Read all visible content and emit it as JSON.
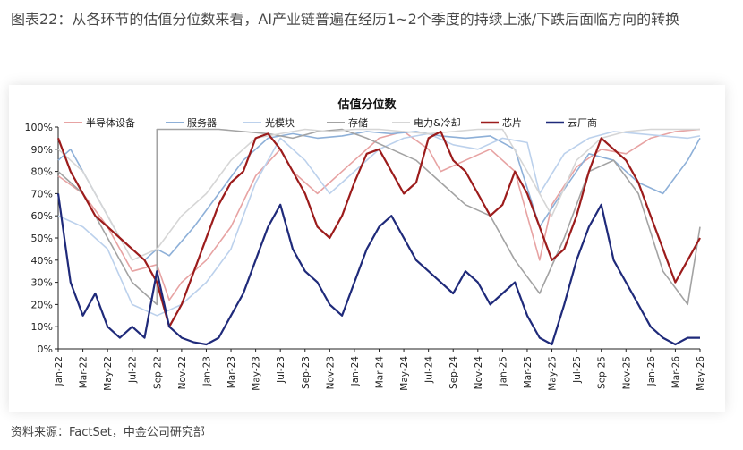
{
  "page": {
    "title": "图表22：从各环节的估值分位数来看，AI产业链普遍在经历1~2个季度的持续上涨/下跌后面临方向的转换",
    "source": "资料来源：FactSet，中金公司研究部"
  },
  "chart_data": {
    "type": "line",
    "title": "估值分位数",
    "xlabel": "",
    "ylabel": "",
    "ylim": [
      0,
      100
    ],
    "y_ticks": [
      "0%",
      "10%",
      "20%",
      "30%",
      "40%",
      "50%",
      "60%",
      "70%",
      "80%",
      "90%",
      "100%"
    ],
    "x_ticks": [
      "Jan-22",
      "Mar-22",
      "May-22",
      "Jul-22",
      "Sep-22",
      "Nov-22",
      "Jan-23",
      "Mar-23",
      "May-23",
      "Jul-23",
      "Sep-23",
      "Nov-23",
      "Jan-24",
      "Mar-24",
      "May-24",
      "Jul-24",
      "Sep-24",
      "Nov-24",
      "Jan-25",
      "Mar-25",
      "May-25",
      "Jul-25",
      "Sep-25",
      "Nov-25",
      "Jan-26",
      "Mar-26",
      "May-26"
    ],
    "x_range": [
      "2022-01",
      "2026-05"
    ],
    "legend_position": "top",
    "grid": false,
    "series": [
      {
        "name": "半导体设备",
        "color": "#e7a3a3",
        "x": [
          "2022-01",
          "2022-03",
          "2022-05",
          "2022-07",
          "2022-09",
          "2022-10",
          "2022-11",
          "2023-01",
          "2023-03",
          "2023-05",
          "2023-07",
          "2023-08",
          "2023-10",
          "2023-11",
          "2024-01",
          "2024-03",
          "2024-05",
          "2024-07",
          "2024-08",
          "2024-10",
          "2024-12",
          "2025-02",
          "2025-04",
          "2025-05",
          "2025-07",
          "2025-09",
          "2025-11",
          "2026-01",
          "2026-03",
          "2026-05"
        ],
        "values": [
          78,
          70,
          55,
          35,
          38,
          22,
          30,
          40,
          55,
          78,
          90,
          80,
          70,
          75,
          85,
          95,
          98,
          90,
          80,
          85,
          90,
          80,
          40,
          65,
          82,
          90,
          88,
          95,
          98,
          99
        ]
      },
      {
        "name": "服务器",
        "color": "#8eb0d8",
        "x": [
          "2022-01",
          "2022-02",
          "2022-04",
          "2022-06",
          "2022-08",
          "2022-09",
          "2022-10",
          "2022-12",
          "2023-02",
          "2023-04",
          "2023-06",
          "2023-08",
          "2023-10",
          "2023-12",
          "2024-02",
          "2024-04",
          "2024-06",
          "2024-08",
          "2024-10",
          "2024-12",
          "2025-02",
          "2025-04",
          "2025-06",
          "2025-08",
          "2025-10",
          "2025-12",
          "2026-02",
          "2026-04",
          "2026-05"
        ],
        "values": [
          85,
          90,
          70,
          50,
          40,
          45,
          42,
          55,
          70,
          85,
          95,
          97,
          95,
          96,
          98,
          97,
          98,
          96,
          95,
          96,
          90,
          55,
          72,
          88,
          85,
          75,
          70,
          85,
          95
        ]
      },
      {
        "name": "光模块",
        "color": "#bcd1ec",
        "x": [
          "2022-01",
          "2022-03",
          "2022-05",
          "2022-07",
          "2022-09",
          "2022-11",
          "2023-01",
          "2023-03",
          "2023-05",
          "2023-07",
          "2023-09",
          "2023-11",
          "2024-01",
          "2024-03",
          "2024-05",
          "2024-07",
          "2024-09",
          "2024-11",
          "2025-01",
          "2025-03",
          "2025-04",
          "2025-06",
          "2025-08",
          "2025-10",
          "2025-12",
          "2026-02",
          "2026-04",
          "2026-05"
        ],
        "values": [
          60,
          55,
          45,
          20,
          15,
          20,
          30,
          45,
          75,
          95,
          85,
          70,
          80,
          90,
          95,
          97,
          92,
          90,
          95,
          93,
          70,
          88,
          95,
          98,
          97,
          96,
          95,
          96
        ]
      },
      {
        "name": "存储",
        "color": "#a3a3a3",
        "x": [
          "2022-01",
          "2022-03",
          "2022-05",
          "2022-07",
          "2022-09",
          "2022-09",
          "2022-12",
          "2023-02",
          "2023-04",
          "2023-06",
          "2023-08",
          "2023-10",
          "2023-12",
          "2024-02",
          "2024-04",
          "2024-06",
          "2024-08",
          "2024-10",
          "2024-12",
          "2025-02",
          "2025-04",
          "2025-06",
          "2025-08",
          "2025-10",
          "2025-12",
          "2026-02",
          "2026-04",
          "2026-05"
        ],
        "values": [
          80,
          70,
          50,
          30,
          20,
          99,
          99,
          99,
          98,
          97,
          95,
          98,
          99,
          95,
          90,
          85,
          75,
          65,
          60,
          40,
          25,
          50,
          80,
          85,
          70,
          35,
          20,
          55
        ]
      },
      {
        "name": "电力&冷却",
        "color": "#d6d6d6",
        "x": [
          "2022-01",
          "2022-03",
          "2022-05",
          "2022-07",
          "2022-09",
          "2022-11",
          "2023-01",
          "2023-03",
          "2023-05",
          "2023-07",
          "2023-09",
          "2023-11",
          "2024-01",
          "2024-03",
          "2024-05",
          "2024-07",
          "2024-09",
          "2024-11",
          "2025-01",
          "2025-03",
          "2025-05",
          "2025-07",
          "2025-09",
          "2025-11",
          "2026-01",
          "2026-03",
          "2026-05"
        ],
        "values": [
          90,
          80,
          60,
          40,
          45,
          60,
          70,
          85,
          95,
          97,
          99,
          98,
          99,
          99,
          98,
          97,
          98,
          99,
          99,
          80,
          60,
          85,
          95,
          98,
          99,
          99,
          99
        ]
      },
      {
        "name": "芯片",
        "color": "#9c1c1c",
        "x": [
          "2022-01",
          "2022-02",
          "2022-03",
          "2022-04",
          "2022-05",
          "2022-06",
          "2022-07",
          "2022-08",
          "2022-09",
          "2022-10",
          "2022-11",
          "2022-12",
          "2023-01",
          "2023-02",
          "2023-03",
          "2023-04",
          "2023-05",
          "2023-06",
          "2023-07",
          "2023-08",
          "2023-09",
          "2023-10",
          "2023-11",
          "2023-12",
          "2024-01",
          "2024-02",
          "2024-03",
          "2024-04",
          "2024-05",
          "2024-06",
          "2024-07",
          "2024-08",
          "2024-09",
          "2024-10",
          "2024-11",
          "2024-12",
          "2025-01",
          "2025-02",
          "2025-03",
          "2025-04",
          "2025-05",
          "2025-06",
          "2025-07",
          "2025-08",
          "2025-09",
          "2025-10",
          "2025-11",
          "2025-12",
          "2026-01",
          "2026-02",
          "2026-03",
          "2026-04",
          "2026-05"
        ],
        "values": [
          95,
          80,
          70,
          60,
          55,
          50,
          45,
          40,
          30,
          10,
          20,
          35,
          50,
          65,
          75,
          80,
          95,
          97,
          90,
          80,
          70,
          55,
          50,
          60,
          75,
          88,
          90,
          80,
          70,
          75,
          95,
          98,
          85,
          80,
          70,
          60,
          65,
          80,
          70,
          55,
          40,
          45,
          60,
          80,
          95,
          90,
          85,
          75,
          60,
          45,
          30,
          40,
          50
        ]
      },
      {
        "name": "云厂商",
        "color": "#1f2a7a",
        "x": [
          "2022-01",
          "2022-02",
          "2022-03",
          "2022-04",
          "2022-05",
          "2022-06",
          "2022-07",
          "2022-08",
          "2022-09",
          "2022-10",
          "2022-11",
          "2022-12",
          "2023-01",
          "2023-02",
          "2023-03",
          "2023-04",
          "2023-05",
          "2023-06",
          "2023-07",
          "2023-08",
          "2023-09",
          "2023-10",
          "2023-11",
          "2023-12",
          "2024-01",
          "2024-02",
          "2024-03",
          "2024-04",
          "2024-05",
          "2024-06",
          "2024-07",
          "2024-08",
          "2024-09",
          "2024-10",
          "2024-11",
          "2024-12",
          "2025-01",
          "2025-02",
          "2025-03",
          "2025-04",
          "2025-05",
          "2025-06",
          "2025-07",
          "2025-08",
          "2025-09",
          "2025-10",
          "2025-11",
          "2025-12",
          "2026-01",
          "2026-02",
          "2026-03",
          "2026-04",
          "2026-05"
        ],
        "values": [
          70,
          30,
          15,
          25,
          10,
          5,
          10,
          5,
          35,
          10,
          5,
          3,
          2,
          5,
          15,
          25,
          40,
          55,
          65,
          45,
          35,
          30,
          20,
          15,
          30,
          45,
          55,
          60,
          50,
          40,
          35,
          30,
          25,
          35,
          30,
          20,
          25,
          30,
          15,
          5,
          2,
          20,
          40,
          55,
          65,
          40,
          30,
          20,
          10,
          5,
          2,
          5,
          5
        ]
      }
    ]
  }
}
